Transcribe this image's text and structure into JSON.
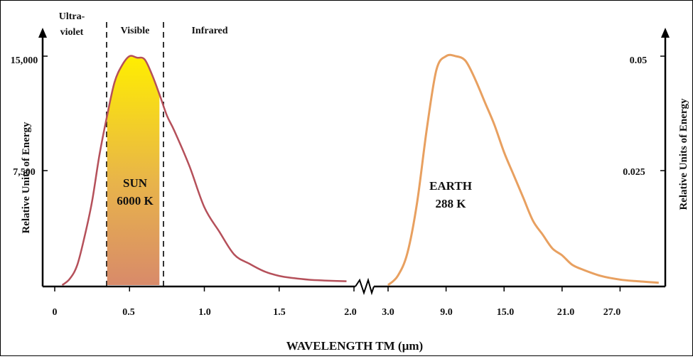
{
  "chart_data": {
    "type": "line",
    "xlabel": "WAVELENGTH TM (µm)",
    "ylabel_left": "Relative Units of Energy",
    "ylabel_right": "Relative Units of Energy",
    "regions": [
      "Ultra-",
      "violet",
      "Visible",
      "Infrared"
    ],
    "left_axis": {
      "x_ticks": [
        "0",
        "0.5",
        "1.0",
        "1.5",
        "2.0"
      ],
      "x_range": [
        0,
        2.0
      ],
      "y_ticks": [
        "7,500",
        "15,000"
      ],
      "ylim": [
        0,
        15000
      ]
    },
    "right_axis": {
      "x_ticks": [
        "3.0",
        "9.0",
        "15.0",
        "21.0",
        "27.0"
      ],
      "x_range": [
        3.0,
        27.0
      ],
      "y_ticks": [
        "0.025",
        "0.05"
      ],
      "ylim": [
        0,
        0.05
      ]
    },
    "visible_band": [
      0.35,
      0.7
    ],
    "series": [
      {
        "label_line1": "SUN",
        "label_line2": "6000 K",
        "color": "#b5505a",
        "x": [
          0.05,
          0.1,
          0.15,
          0.2,
          0.25,
          0.3,
          0.35,
          0.4,
          0.45,
          0.5,
          0.55,
          0.6,
          0.65,
          0.7,
          0.75,
          0.8,
          0.9,
          1.0,
          1.1,
          1.2,
          1.3,
          1.4,
          1.5,
          1.6,
          1.7,
          1.8,
          1.95
        ],
        "y": [
          0,
          400,
          1300,
          3200,
          5500,
          8600,
          11100,
          13300,
          14400,
          15000,
          14900,
          14800,
          13800,
          12500,
          11100,
          10100,
          7800,
          5100,
          3500,
          2000,
          1400,
          900,
          600,
          450,
          350,
          300,
          250
        ]
      },
      {
        "label_line1": "EARTH",
        "label_line2": "288 K",
        "color": "#e8a060",
        "x": [
          3.0,
          4.0,
          5.0,
          6.0,
          7.0,
          8.0,
          9.0,
          10.0,
          11.0,
          12.0,
          13.0,
          14.0,
          15.0,
          16.0,
          17.0,
          18.0,
          19.0,
          20.0,
          21.0,
          22.0,
          23.0,
          25.0,
          27.0,
          29.0,
          31.0
        ],
        "y": [
          0,
          0.002,
          0.007,
          0.018,
          0.034,
          0.047,
          0.05,
          0.05,
          0.049,
          0.045,
          0.04,
          0.035,
          0.029,
          0.024,
          0.019,
          0.014,
          0.011,
          0.008,
          0.0065,
          0.0045,
          0.0035,
          0.002,
          0.0012,
          0.0008,
          0.0005
        ]
      }
    ],
    "colors": {
      "fill_top": "#ffee00",
      "fill_mid": "#e8b44a",
      "fill_bottom": "#d88a6a",
      "axis": "#000000"
    }
  }
}
